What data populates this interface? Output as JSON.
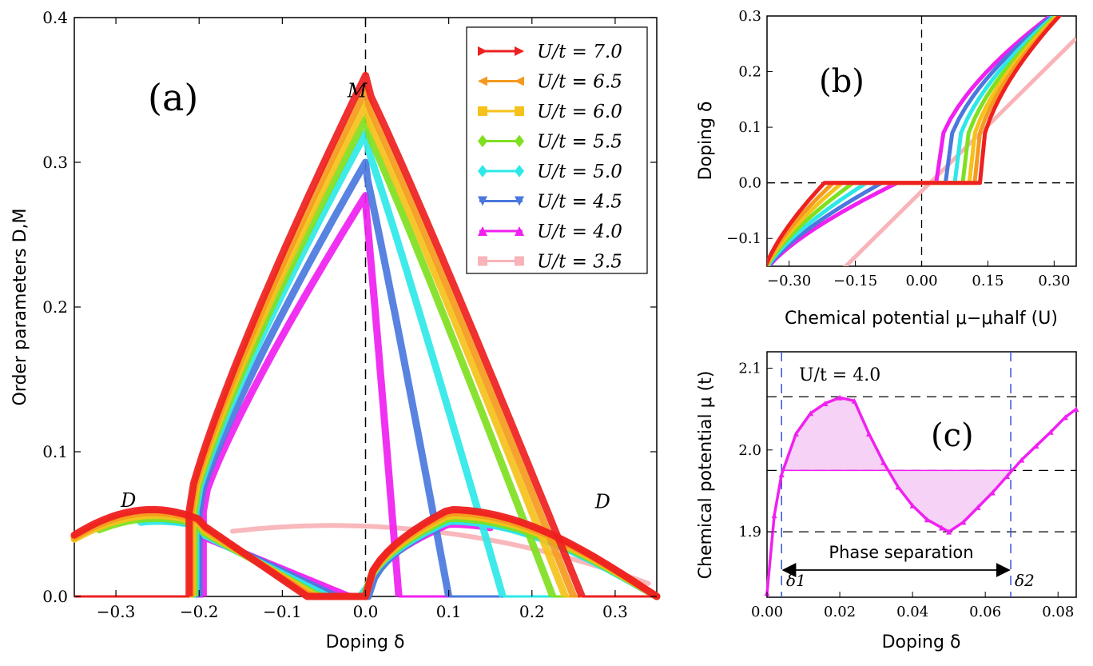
{
  "chart_data": [
    {
      "type": "line",
      "panel_label": "(a)",
      "xlabel": "Doping δ",
      "ylabel": "Order parameters D,M",
      "xlim": [
        -0.35,
        0.35
      ],
      "ylim": [
        0.0,
        0.4
      ],
      "x_ticks": [
        "−0.3",
        "−0.2",
        "−0.1",
        "0.0",
        "0.1",
        "0.2",
        "0.3"
      ],
      "y_ticks": [
        "0.0",
        "0.1",
        "0.2",
        "0.3",
        "0.4"
      ],
      "legend_position": "top-right",
      "annotations": [
        {
          "text": "M",
          "x": -0.01,
          "y": 0.345
        },
        {
          "text": "D",
          "x": -0.285,
          "y": 0.062
        },
        {
          "text": "D",
          "x": 0.285,
          "y": 0.061
        }
      ],
      "series": [
        {
          "name": "U/t = 7.0",
          "color": "#ee2020",
          "marker": "right-triangle",
          "M_peak": 0.36,
          "M_left_onset": -0.212,
          "M_right_end": 0.26,
          "D_range": [
            -0.35,
            0.35
          ],
          "D_peak": 0.06,
          "D_zero": [
            -0.07,
            0.0
          ]
        },
        {
          "name": "U/t = 6.5",
          "color": "#f59a20",
          "marker": "left-triangle",
          "M_peak": 0.35,
          "M_left_onset": -0.21,
          "M_right_end": 0.25,
          "D_range": [
            -0.35,
            0.35
          ],
          "D_peak": 0.058,
          "D_zero": [
            -0.065,
            0.0
          ]
        },
        {
          "name": "U/t = 6.0",
          "color": "#f5c21b",
          "marker": "square",
          "M_peak": 0.34,
          "M_left_onset": -0.208,
          "M_right_end": 0.24,
          "D_range": [
            -0.35,
            0.35
          ],
          "D_peak": 0.056,
          "D_zero": [
            -0.06,
            0.0
          ]
        },
        {
          "name": "U/t = 5.5",
          "color": "#7fe020",
          "marker": "diamond",
          "M_peak": 0.33,
          "M_left_onset": -0.206,
          "M_right_end": 0.225,
          "D_range": [
            -0.32,
            0.35
          ],
          "D_peak": 0.054,
          "D_zero": [
            -0.055,
            0.0
          ]
        },
        {
          "name": "U/t = 5.0",
          "color": "#2ee8e8",
          "marker": "diamond",
          "M_peak": 0.32,
          "M_left_onset": -0.204,
          "M_right_end": 0.165,
          "D_range": [
            -0.27,
            0.35
          ],
          "D_peak": 0.052,
          "D_zero": [
            -0.045,
            0.0
          ]
        },
        {
          "name": "U/t = 4.5",
          "color": "#4a78dd",
          "marker": "down-triangle",
          "M_peak": 0.3,
          "M_left_onset": -0.2,
          "M_right_end": 0.1,
          "D_range": [
            -0.24,
            0.35
          ],
          "D_peak": 0.052,
          "D_zero": [
            -0.035,
            0.005
          ]
        },
        {
          "name": "U/t = 4.0",
          "color": "#f020f0",
          "marker": "up-triangle",
          "M_peak": 0.277,
          "M_left_onset": -0.195,
          "M_right_end": 0.04,
          "D_range": [
            -0.2,
            0.15
          ],
          "D_peak": 0.05,
          "D_zero": [
            -0.02,
            0.0
          ]
        },
        {
          "name": "U/t = 3.5",
          "color": "#f8b4b8",
          "marker": "square",
          "M_peak": 0.0,
          "M_left_onset": 0.0,
          "M_right_end": 0.0,
          "D_range": [
            -0.16,
            0.34
          ],
          "D_peak": 0.049,
          "D_zero": [
            0.0,
            0.0
          ]
        }
      ]
    },
    {
      "type": "line",
      "panel_label": "(b)",
      "xlabel": "Chemical potential μ−μhalf (U)",
      "ylabel": "Doping δ",
      "xlim": [
        -0.35,
        0.35
      ],
      "ylim": [
        -0.15,
        0.3
      ],
      "x_ticks": [
        "−0.30",
        "−0.15",
        "0.00",
        "0.15",
        "0.30"
      ],
      "y_ticks": [
        "−0.1",
        "0.0",
        "0.1",
        "0.2",
        "0.3"
      ],
      "series_gap_half_width": [
        0.22,
        0.2,
        0.18,
        0.155,
        0.125,
        0.09,
        0.055,
        0.0
      ]
    },
    {
      "type": "line",
      "panel_label": "(c)",
      "annotation": "U/t = 4.0",
      "xlabel": "Doping δ",
      "ylabel": "Chemical potential μ (t)",
      "xlim": [
        0.0,
        0.085
      ],
      "ylim": [
        1.82,
        2.12
      ],
      "x_ticks": [
        "0.00",
        "0.02",
        "0.04",
        "0.06",
        "0.08"
      ],
      "y_ticks": [
        "1.9",
        "2.0",
        "2.1"
      ],
      "reference_lines": {
        "mu_max": 2.065,
        "mu_maxwell": 1.975,
        "mu_min": 1.9
      },
      "delta1": 0.004,
      "delta2": 0.067,
      "delta1_label": "δ1",
      "delta2_label": "δ2",
      "phase_separation_label": "Phase separation",
      "curve": {
        "x": [
          0.0,
          0.002,
          0.004,
          0.008,
          0.012,
          0.016,
          0.02,
          0.024,
          0.028,
          0.032,
          0.036,
          0.04,
          0.044,
          0.048,
          0.05,
          0.054,
          0.058,
          0.062,
          0.066,
          0.07,
          0.074,
          0.078,
          0.082,
          0.085
        ],
        "y": [
          1.825,
          1.92,
          1.97,
          2.02,
          2.045,
          2.057,
          2.064,
          2.06,
          2.02,
          1.985,
          1.955,
          1.932,
          1.915,
          1.905,
          1.9,
          1.912,
          1.93,
          1.948,
          1.968,
          1.988,
          2.005,
          2.022,
          2.04,
          2.05
        ]
      }
    }
  ]
}
